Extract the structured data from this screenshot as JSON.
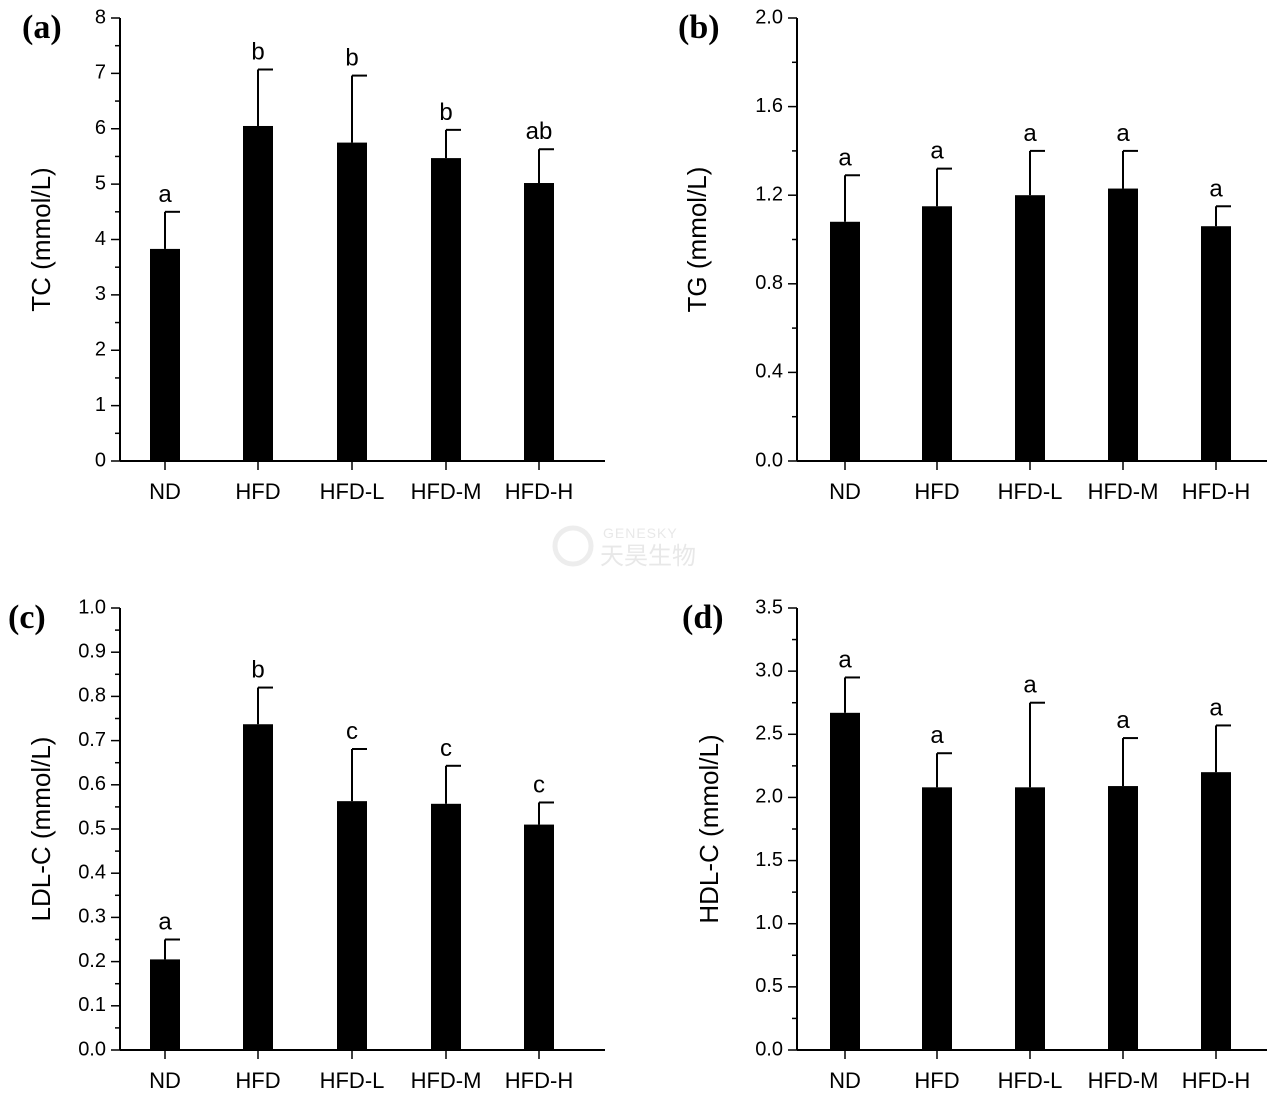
{
  "watermark": {
    "brand": "GENESKY",
    "brand_cn": "天昊生物"
  },
  "chart_data": [
    {
      "type": "bar",
      "panel": "(a)",
      "ylabel": "TC (mmol/L)",
      "ylim": [
        0,
        8
      ],
      "yticks": [
        "0",
        "1",
        "2",
        "3",
        "4",
        "5",
        "6",
        "7",
        "8"
      ],
      "categories": [
        "ND",
        "HFD",
        "HFD-L",
        "HFD-M",
        "HFD-H"
      ],
      "values": [
        3.83,
        6.05,
        5.75,
        5.47,
        5.02
      ],
      "errors": [
        0.67,
        1.02,
        1.21,
        0.51,
        0.61
      ],
      "labels": [
        "a",
        "b",
        "b",
        "b",
        "ab"
      ]
    },
    {
      "type": "bar",
      "panel": "(b)",
      "ylabel": "TG (mmol/L)",
      "ylim": [
        0,
        2.0
      ],
      "yticks": [
        "0.0",
        "0.4",
        "0.8",
        "1.2",
        "1.6",
        "2.0"
      ],
      "categories": [
        "ND",
        "HFD",
        "HFD-L",
        "HFD-M",
        "HFD-H"
      ],
      "values": [
        1.08,
        1.15,
        1.2,
        1.23,
        1.06
      ],
      "errors": [
        0.21,
        0.17,
        0.2,
        0.17,
        0.09
      ],
      "labels": [
        "a",
        "a",
        "a",
        "a",
        "a"
      ]
    },
    {
      "type": "bar",
      "panel": "(c)",
      "ylabel": "LDL-C (mmol/L)",
      "ylim": [
        0,
        1.0
      ],
      "yticks": [
        "0.0",
        "0.1",
        "0.2",
        "0.3",
        "0.4",
        "0.5",
        "0.6",
        "0.7",
        "0.8",
        "0.9",
        "1.0"
      ],
      "categories": [
        "ND",
        "HFD",
        "HFD-L",
        "HFD-M",
        "HFD-H"
      ],
      "values": [
        0.205,
        0.737,
        0.563,
        0.557,
        0.51
      ],
      "errors": [
        0.045,
        0.083,
        0.118,
        0.086,
        0.05
      ],
      "labels": [
        "a",
        "b",
        "c",
        "c",
        "c"
      ]
    },
    {
      "type": "bar",
      "panel": "(d)",
      "ylabel": "HDL-C (mmol/L)",
      "ylim": [
        0,
        3.5
      ],
      "yticks": [
        "0.0",
        "0.5",
        "1.0",
        "1.5",
        "2.0",
        "2.5",
        "3.0",
        "3.5"
      ],
      "categories": [
        "ND",
        "HFD",
        "HFD-L",
        "HFD-M",
        "HFD-H"
      ],
      "values": [
        2.67,
        2.08,
        2.08,
        2.09,
        2.2
      ],
      "errors": [
        0.28,
        0.27,
        0.67,
        0.38,
        0.37
      ],
      "labels": [
        "a",
        "a",
        "a",
        "a",
        "a"
      ]
    }
  ]
}
